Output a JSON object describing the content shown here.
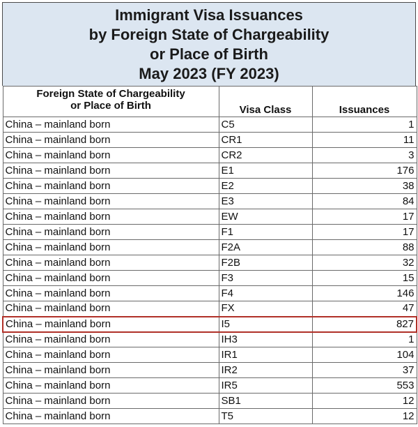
{
  "title": {
    "line1": "Immigrant Visa Issuances",
    "line2": "by Foreign State of Chargeability",
    "line3": "or Place of Birth",
    "line4": "May 2023 (FY 2023)"
  },
  "table": {
    "headers": {
      "state_line1": "Foreign State of Chargeability",
      "state_line2": "or Place of Birth",
      "visa_class": "Visa Class",
      "issuances": "Issuances"
    },
    "highlight_color": "#b03028",
    "title_background": "#dce6f1",
    "rows": [
      {
        "state": "China – mainland born",
        "visa_class": "C5",
        "issuances": "1"
      },
      {
        "state": "China – mainland born",
        "visa_class": "CR1",
        "issuances": "11"
      },
      {
        "state": "China – mainland born",
        "visa_class": "CR2",
        "issuances": "3"
      },
      {
        "state": "China – mainland born",
        "visa_class": "E1",
        "issuances": "176"
      },
      {
        "state": "China – mainland born",
        "visa_class": "E2",
        "issuances": "38"
      },
      {
        "state": "China – mainland born",
        "visa_class": "E3",
        "issuances": "84"
      },
      {
        "state": "China – mainland born",
        "visa_class": "EW",
        "issuances": "17"
      },
      {
        "state": "China – mainland born",
        "visa_class": "F1",
        "issuances": "17"
      },
      {
        "state": "China – mainland born",
        "visa_class": "F2A",
        "issuances": "88"
      },
      {
        "state": "China – mainland born",
        "visa_class": "F2B",
        "issuances": "32"
      },
      {
        "state": "China – mainland born",
        "visa_class": "F3",
        "issuances": "15"
      },
      {
        "state": "China – mainland born",
        "visa_class": "F4",
        "issuances": "146"
      },
      {
        "state": "China – mainland born",
        "visa_class": "FX",
        "issuances": "47"
      },
      {
        "state": "China – mainland born",
        "visa_class": "I5",
        "issuances": "827",
        "highlighted": true
      },
      {
        "state": "China – mainland born",
        "visa_class": "IH3",
        "issuances": "1"
      },
      {
        "state": "China – mainland born",
        "visa_class": "IR1",
        "issuances": "104"
      },
      {
        "state": "China – mainland born",
        "visa_class": "IR2",
        "issuances": "37"
      },
      {
        "state": "China – mainland born",
        "visa_class": "IR5",
        "issuances": "553"
      },
      {
        "state": "China – mainland born",
        "visa_class": "SB1",
        "issuances": "12"
      },
      {
        "state": "China – mainland born",
        "visa_class": "T5",
        "issuances": "12"
      }
    ]
  }
}
